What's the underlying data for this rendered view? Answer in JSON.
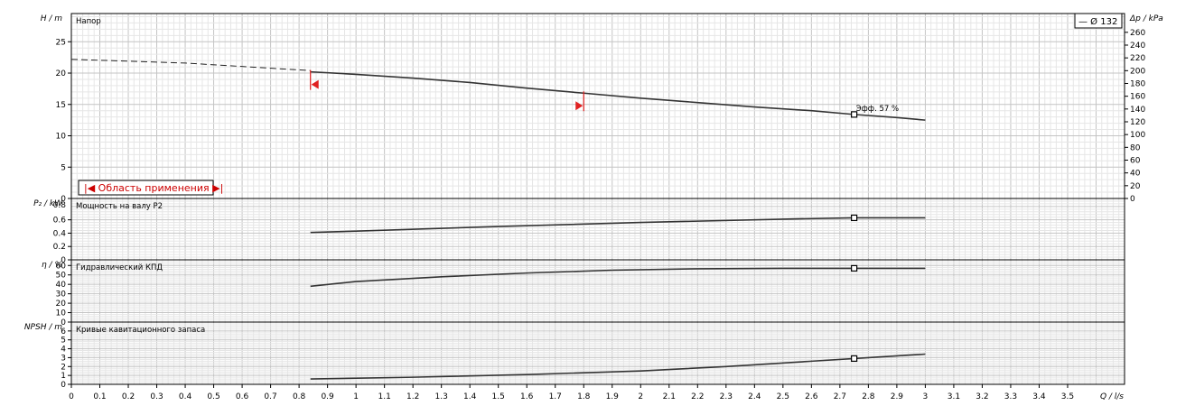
{
  "chart_data": {
    "type": "line",
    "legend": {
      "label": "— Ø 132",
      "position": "top-right"
    },
    "x_axis": {
      "label": "Q / l/s",
      "range": [
        0,
        3.7
      ],
      "ticks": [
        0,
        0.1,
        0.2,
        0.3,
        0.4,
        0.5,
        0.6,
        0.7,
        0.8,
        0.9,
        1,
        1.1,
        1.2,
        1.3,
        1.4,
        1.5,
        1.6,
        1.7,
        1.8,
        1.9,
        2,
        2.1,
        2.2,
        2.3,
        2.4,
        2.5,
        2.6,
        2.7,
        2.8,
        2.9,
        3,
        3.1,
        3.2,
        3.3,
        3.4,
        3.5
      ]
    },
    "panels": [
      {
        "id": "head",
        "title": "Напор",
        "ylabel": "H / m",
        "ylim": [
          0,
          29.5
        ],
        "yticks": [
          0,
          5,
          10,
          15,
          20,
          25
        ],
        "y2label": "Δp / kPa",
        "y2ticks": [
          0,
          20,
          40,
          60,
          80,
          100,
          120,
          140,
          160,
          180,
          200,
          220,
          240,
          260
        ],
        "y2_per_y": 9.81,
        "dashed_series": {
          "x": [
            0,
            0.4,
            0.84
          ],
          "y": [
            22.2,
            21.6,
            20.4
          ]
        },
        "series": {
          "name": "Ø 132",
          "x": [
            0.84,
            1.0,
            1.2,
            1.4,
            1.6,
            1.8,
            2.0,
            2.2,
            2.4,
            2.6,
            2.75,
            2.9,
            3.0
          ],
          "y": [
            20.2,
            19.8,
            19.2,
            18.5,
            17.6,
            16.8,
            16.0,
            15.3,
            14.6,
            14.0,
            13.4,
            12.9,
            12.5
          ]
        },
        "marker": {
          "x": 2.75,
          "y": 13.4,
          "label": "Эфф. 57 %"
        },
        "range_limits": [
          {
            "x": 0.84,
            "direction": "left"
          },
          {
            "x": 1.8,
            "direction": "right"
          }
        ],
        "range_box_label": "|◀ Область применения ▶|"
      },
      {
        "id": "power",
        "title": "Мощность на валу P2",
        "ylabel": "P₂ / kW",
        "ylim": [
          0,
          0.92
        ],
        "yticks": [
          0,
          0.2,
          0.4,
          0.6
        ],
        "ytick_labels": [
          "0",
          "0.2",
          "0.4",
          "0.6"
        ],
        "extra_tick_labels": [
          "0.8"
        ],
        "series": {
          "x": [
            0.84,
            1.0,
            1.5,
            2.0,
            2.5,
            2.75,
            3.0
          ],
          "y": [
            0.41,
            0.43,
            0.5,
            0.56,
            0.61,
            0.63,
            0.63
          ]
        },
        "marker": {
          "x": 2.75,
          "y": 0.63
        }
      },
      {
        "id": "efficiency",
        "title": "Гидравлический КПД",
        "ylabel": "η / %",
        "ylim": [
          0,
          66
        ],
        "yticks": [
          0,
          10,
          20,
          30,
          40,
          50,
          60
        ],
        "series": {
          "x": [
            0.84,
            1.0,
            1.3,
            1.6,
            1.9,
            2.2,
            2.5,
            2.75,
            3.0
          ],
          "y": [
            38,
            43,
            48,
            52,
            55,
            56.5,
            57,
            57,
            57
          ]
        },
        "marker": {
          "x": 2.75,
          "y": 57
        }
      },
      {
        "id": "npsh",
        "title": "Кривые кавитационного запаса",
        "ylabel": "NPSH / m",
        "ylim": [
          0,
          7
        ],
        "yticks": [
          0,
          1,
          2,
          3,
          4,
          5,
          6
        ],
        "series": {
          "x": [
            0.84,
            1.2,
            1.6,
            2.0,
            2.3,
            2.6,
            2.75,
            3.0
          ],
          "y": [
            0.6,
            0.8,
            1.1,
            1.5,
            2.0,
            2.6,
            2.9,
            3.4
          ]
        },
        "marker": {
          "x": 2.75,
          "y": 2.9
        }
      }
    ]
  }
}
